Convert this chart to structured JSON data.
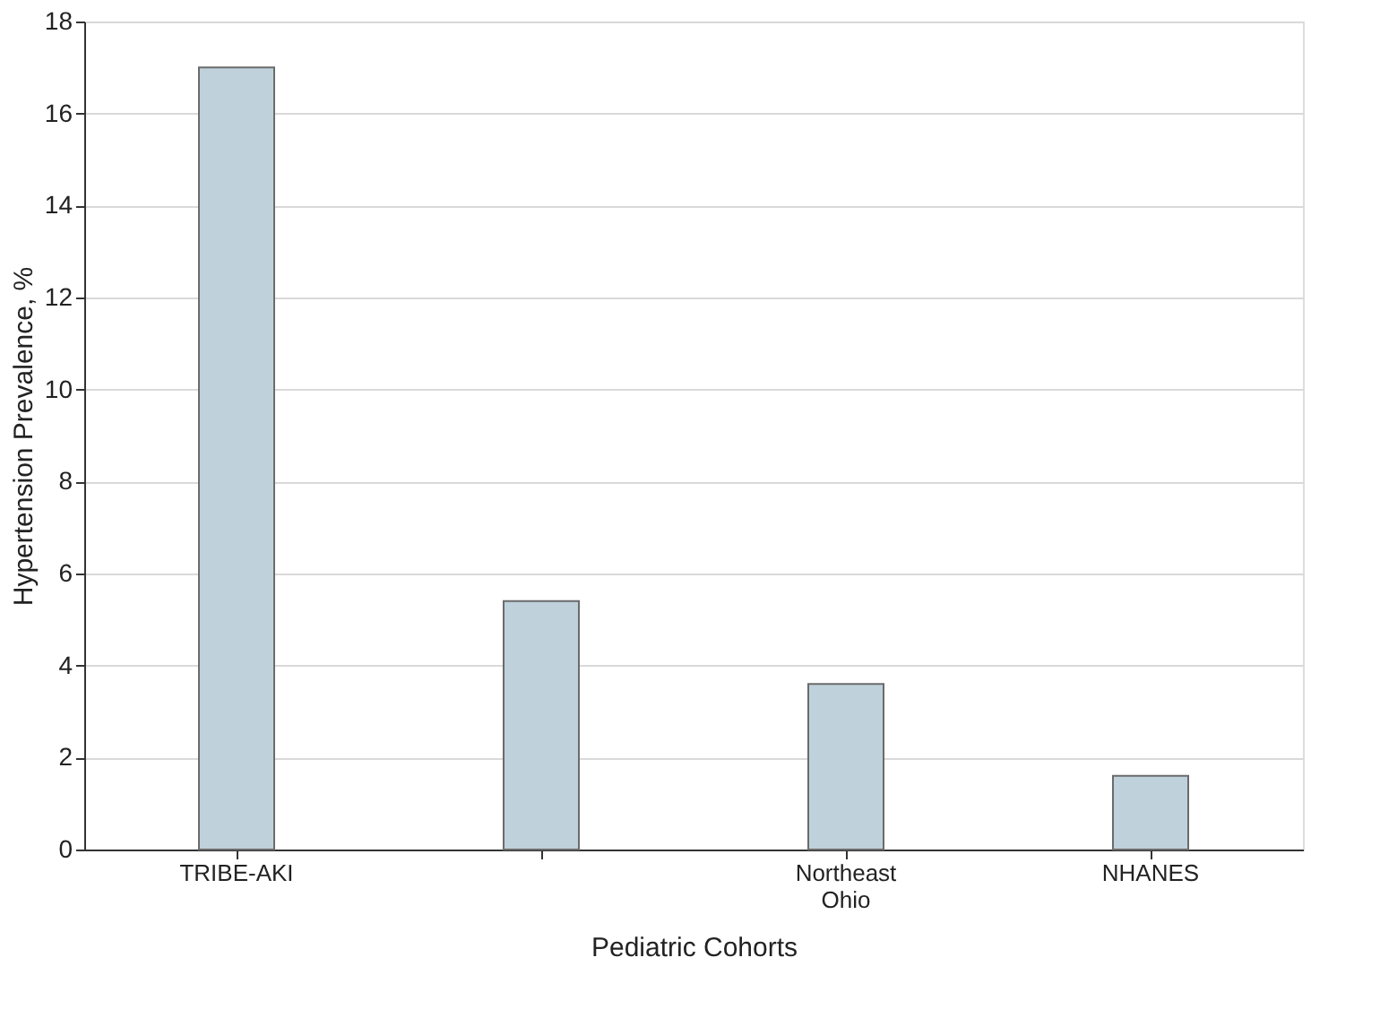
{
  "chart_data": {
    "type": "bar",
    "categories": [
      "TRIBE-AKI",
      null,
      "Northeast Ohio",
      "NHANES"
    ],
    "values": [
      17,
      5.4,
      3.6,
      1.6
    ],
    "color": "#bfd1db",
    "xlabel": "Pediatric Cohorts",
    "ylabel": "Hypertension Prevalence, %",
    "ylim": [
      0,
      18
    ],
    "yticks": [
      0,
      2,
      4,
      6,
      8,
      10,
      12,
      14,
      16,
      18
    ],
    "grid": "y"
  }
}
